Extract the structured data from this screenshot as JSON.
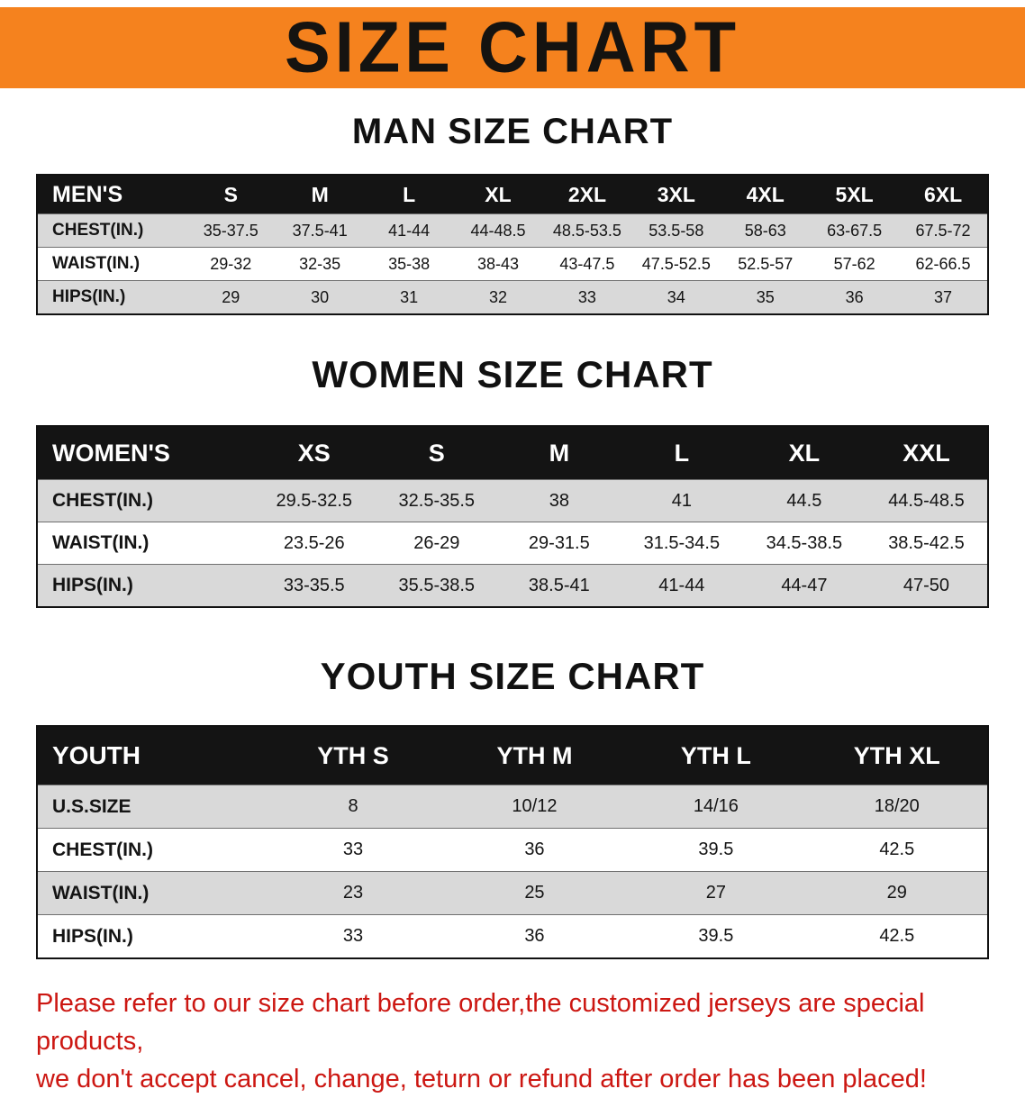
{
  "banner": {
    "title": "SIZE CHART",
    "bg_color": "#f5821e"
  },
  "colors": {
    "header_bar": "#141414",
    "row_shade": "#d9d9d9",
    "footer_text": "#cc1712"
  },
  "sections": [
    {
      "title": "MAN SIZE CHART",
      "table": {
        "header": [
          "MEN'S",
          "S",
          "M",
          "L",
          "XL",
          "2XL",
          "3XL",
          "4XL",
          "5XL",
          "6XL"
        ],
        "rows": [
          [
            "CHEST(IN.)",
            "35-37.5",
            "37.5-41",
            "41-44",
            "44-48.5",
            "48.5-53.5",
            "53.5-58",
            "58-63",
            "63-67.5",
            "67.5-72"
          ],
          [
            "WAIST(IN.)",
            "29-32",
            "32-35",
            "35-38",
            "38-43",
            "43-47.5",
            "47.5-52.5",
            "52.5-57",
            "57-62",
            "62-66.5"
          ],
          [
            "HIPS(IN.)",
            "29",
            "30",
            "31",
            "32",
            "33",
            "34",
            "35",
            "36",
            "37"
          ]
        ]
      }
    },
    {
      "title": "WOMEN SIZE CHART",
      "table": {
        "header": [
          "WOMEN'S",
          "XS",
          "S",
          "M",
          "L",
          "XL",
          "XXL"
        ],
        "rows": [
          [
            "CHEST(IN.)",
            "29.5-32.5",
            "32.5-35.5",
            "38",
            "41",
            "44.5",
            "44.5-48.5"
          ],
          [
            "WAIST(IN.)",
            "23.5-26",
            "26-29",
            "29-31.5",
            "31.5-34.5",
            "34.5-38.5",
            "38.5-42.5"
          ],
          [
            "HIPS(IN.)",
            "33-35.5",
            "35.5-38.5",
            "38.5-41",
            "41-44",
            "44-47",
            "47-50"
          ]
        ]
      }
    },
    {
      "title": "YOUTH SIZE CHART",
      "table": {
        "header": [
          "YOUTH",
          "YTH S",
          "YTH M",
          "YTH L",
          "YTH XL"
        ],
        "rows": [
          [
            "U.S.SIZE",
            "8",
            "10/12",
            "14/16",
            "18/20"
          ],
          [
            "CHEST(IN.)",
            "33",
            "36",
            "39.5",
            "42.5"
          ],
          [
            "WAIST(IN.)",
            "23",
            "25",
            "27",
            "29"
          ],
          [
            "HIPS(IN.)",
            "33",
            "36",
            "39.5",
            "42.5"
          ]
        ]
      }
    }
  ],
  "footer": {
    "line1": "Please refer to our size chart before order,the customized jerseys are special products,",
    "line2": "we don't accept cancel, change, teturn or refund after order has been placed!"
  }
}
